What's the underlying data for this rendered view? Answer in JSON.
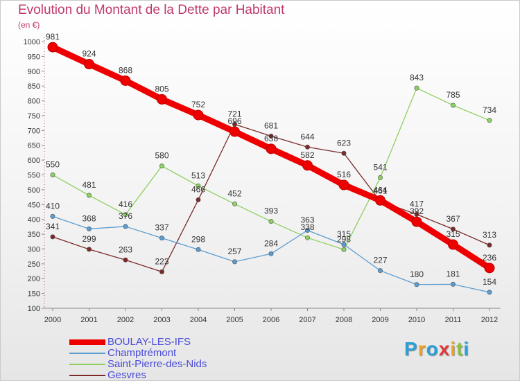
{
  "title": "Evolution du Montant de la Dette par Habitant",
  "unit_label": "(en €)",
  "logo": {
    "letters": [
      "P",
      "r",
      "o",
      "x",
      "i",
      "t",
      "i"
    ],
    "colors": [
      "#2a9fd8",
      "#f0a020",
      "#2a9fd8",
      "#e03a3a",
      "#f0a020",
      "#88c040",
      "#2a9fd8"
    ]
  },
  "chart_data": {
    "type": "line",
    "title": "Evolution du Montant de la Dette par Habitant",
    "ylabel": "(en €)",
    "x": [
      "2000",
      "2001",
      "2002",
      "2003",
      "2004",
      "2005",
      "2006",
      "2007",
      "2008",
      "2009",
      "2010",
      "2011",
      "2012"
    ],
    "ylim": [
      100,
      1000
    ],
    "yticks": [
      "100",
      "150",
      "200",
      "250",
      "300",
      "350",
      "400",
      "450",
      "500",
      "550",
      "600",
      "650",
      "700",
      "750",
      "800",
      "850",
      "900",
      "950",
      "1000"
    ],
    "grid": false,
    "legend_position": "bottom-left",
    "series": [
      {
        "name": "BOULAY-LES-IFS",
        "color": "#ee0000",
        "values": [
          981,
          924,
          868,
          805,
          752,
          696,
          638,
          582,
          516,
          464,
          392,
          315,
          236
        ],
        "labels": [
          "981",
          "924",
          "868",
          "805",
          "752",
          "696",
          "638",
          "582",
          "516",
          "464",
          "392",
          "315",
          "236"
        ]
      },
      {
        "name": "Champtrémont",
        "color": "#5a9cd0",
        "values": [
          410,
          368,
          376,
          337,
          298,
          257,
          284,
          363,
          315,
          227,
          180,
          181,
          154
        ],
        "labels": [
          "410",
          "368",
          "376",
          "337",
          "298",
          "257",
          "284",
          "363",
          "315",
          "227",
          "180",
          "181",
          "154"
        ]
      },
      {
        "name": "Saint-Pierre-des-Nids",
        "color": "#8cd060",
        "values": [
          550,
          481,
          416,
          580,
          513,
          452,
          393,
          338,
          298,
          541,
          843,
          785,
          734
        ],
        "labels": [
          "550",
          "481",
          "416",
          "580",
          "513",
          "452",
          "393",
          "338",
          "298",
          "541",
          "843",
          "785",
          "734"
        ]
      },
      {
        "name": "Gesvres",
        "color": "#7a2a2a",
        "values": [
          341,
          299,
          263,
          223,
          466,
          721,
          681,
          644,
          623,
          461,
          417,
          367,
          313
        ],
        "labels": [
          "341",
          "299",
          "263",
          "223",
          "466",
          "721",
          "681",
          "644",
          "623",
          "461",
          "417",
          "367",
          "313"
        ]
      }
    ]
  }
}
